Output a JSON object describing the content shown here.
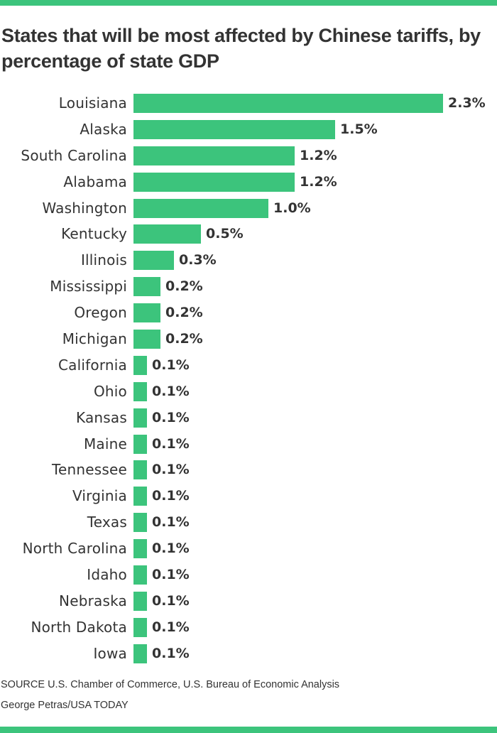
{
  "colors": {
    "accent": "#3cc47c",
    "text": "#333333",
    "background": "#ffffff"
  },
  "header": {
    "title": "States that will be most affected by Chinese tariffs, by percentage of state GDP"
  },
  "footer": {
    "source": "SOURCE U.S. Chamber of Commerce, U.S. Bureau of Economic Analysis",
    "credit": "George Petras/USA TODAY"
  },
  "chart_data": {
    "type": "bar",
    "orientation": "horizontal",
    "title": "States that will be most affected by Chinese tariffs, by percentage of state GDP",
    "xlabel": "",
    "ylabel": "",
    "unit": "% of state GDP",
    "grid": false,
    "legend": null,
    "xlim": [
      0,
      2.3
    ],
    "categories": [
      "Louisiana",
      "Alaska",
      "South Carolina",
      "Alabama",
      "Washington",
      "Kentucky",
      "Illinois",
      "Mississippi",
      "Oregon",
      "Michigan",
      "California",
      "Ohio",
      "Kansas",
      "Maine",
      "Tennessee",
      "Virginia",
      "Texas",
      "North Carolina",
      "Idaho",
      "Nebraska",
      "North Dakota",
      "Iowa"
    ],
    "values": [
      2.3,
      1.5,
      1.2,
      1.2,
      1.0,
      0.5,
      0.3,
      0.2,
      0.2,
      0.2,
      0.1,
      0.1,
      0.1,
      0.1,
      0.1,
      0.1,
      0.1,
      0.1,
      0.1,
      0.1,
      0.1,
      0.1
    ],
    "value_labels": [
      "2.3%",
      "1.5%",
      "1.2%",
      "1.2%",
      "1.0%",
      "0.5%",
      "0.3%",
      "0.2%",
      "0.2%",
      "0.2%",
      "0.1%",
      "0.1%",
      "0.1%",
      "0.1%",
      "0.1%",
      "0.1%",
      "0.1%",
      "0.1%",
      "0.1%",
      "0.1%",
      "0.1%",
      "0.1%"
    ],
    "source": "SOURCE U.S. Chamber of Commerce, U.S. Bureau of Economic Analysis",
    "credit": "George Petras/USA TODAY"
  }
}
